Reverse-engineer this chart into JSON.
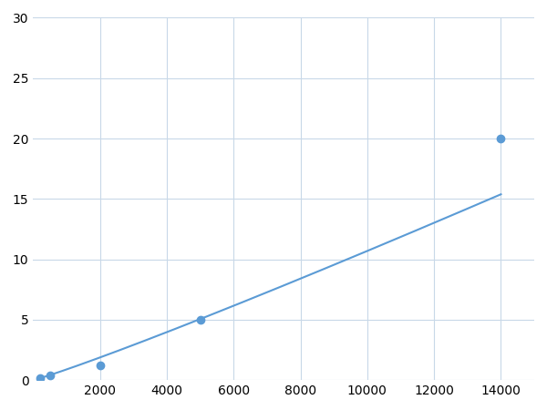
{
  "x_points": [
    200,
    500,
    2000,
    5000,
    14000
  ],
  "y_points": [
    0.2,
    0.4,
    1.2,
    5.0,
    20.0
  ],
  "line_color": "#5b9bd5",
  "marker_color": "#5b9bd5",
  "marker_size": 6,
  "line_width": 1.5,
  "xlim": [
    0,
    15000
  ],
  "ylim": [
    0,
    30
  ],
  "xticks": [
    2000,
    4000,
    6000,
    8000,
    10000,
    12000,
    14000
  ],
  "yticks": [
    0,
    5,
    10,
    15,
    20,
    25,
    30
  ],
  "grid_color": "#c8d8e8",
  "background_color": "#ffffff",
  "tick_label_fontsize": 10
}
